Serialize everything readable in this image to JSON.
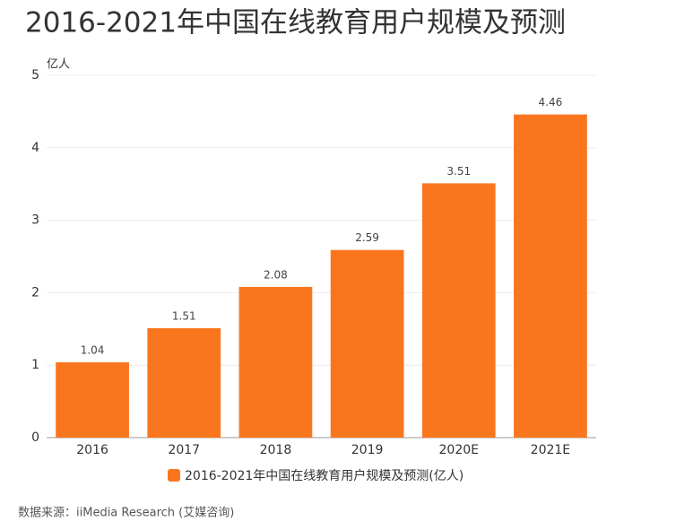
{
  "chart_data": {
    "type": "bar",
    "title": "2016-2021年中国在线教育用户规模及预测",
    "y_label": "亿人",
    "categories": [
      "2016",
      "2017",
      "2018",
      "2019",
      "2020E",
      "2021E"
    ],
    "series": [
      {
        "name": "2016-2021年中国在线教育用户规模及预测(亿人)",
        "color": "#fa761e",
        "values": [
          1.04,
          1.51,
          2.08,
          2.59,
          3.51,
          4.46
        ]
      }
    ],
    "ylim": [
      0,
      5
    ],
    "yticks": [
      0,
      1,
      2,
      3,
      4,
      5
    ],
    "grid": true,
    "legend": "bottom",
    "source": "数据来源：iiMedia Research (艾媒咨询)"
  }
}
